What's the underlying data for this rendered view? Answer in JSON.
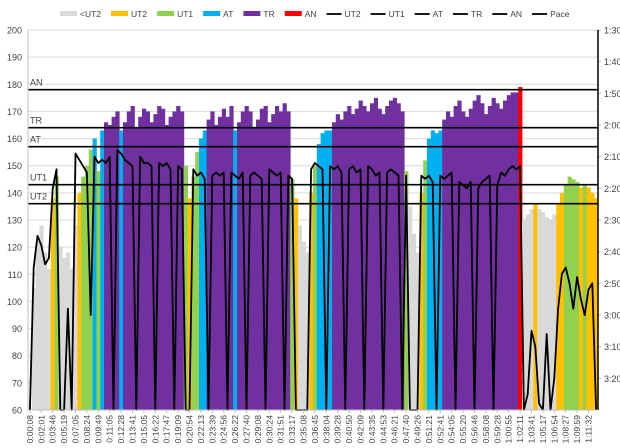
{
  "chart_data": {
    "type": "area",
    "title": "",
    "legend_position": "top",
    "legend": [
      {
        "label": "<UT2",
        "kind": "swatch",
        "color": "#d9d9d9"
      },
      {
        "label": "UT2",
        "kind": "swatch",
        "color": "#ffc000"
      },
      {
        "label": "UT1",
        "kind": "swatch",
        "color": "#92d050"
      },
      {
        "label": "AT",
        "kind": "swatch",
        "color": "#00b0f0"
      },
      {
        "label": "TR",
        "kind": "swatch",
        "color": "#7030a0"
      },
      {
        "label": "AN",
        "kind": "swatch",
        "color": "#ff0000"
      },
      {
        "label": "UT2",
        "kind": "line",
        "color": "#000000"
      },
      {
        "label": "UT1",
        "kind": "line",
        "color": "#000000"
      },
      {
        "label": "AT",
        "kind": "line",
        "color": "#000000"
      },
      {
        "label": "TR",
        "kind": "line",
        "color": "#000000"
      },
      {
        "label": "AN",
        "kind": "line",
        "color": "#000000"
      },
      {
        "label": "Pace",
        "kind": "line",
        "color": "#000000"
      }
    ],
    "y_left": {
      "min": 60,
      "max": 200,
      "step": 10,
      "grid": true
    },
    "y_right": {
      "reversed": true,
      "ticks": [
        "1:30",
        "1:40",
        "1:50",
        "2:00",
        "2:10",
        "2:20",
        "2:30",
        "2:40",
        "2:50",
        "3:00",
        "3:10",
        "3:20"
      ],
      "min": "1:30",
      "max": "3:30"
    },
    "x_tick_labels": [
      "0:00:08",
      "0:02:01",
      "0:03:46",
      "0:05:19",
      "0:07:05",
      "0:08:24",
      "0:09:49",
      "0:11:05",
      "0:12:28",
      "0:13:41",
      "0:15:05",
      "0:16:22",
      "0:17:47",
      "0:19:09",
      "0:20:54",
      "0:22:13",
      "0:23:39",
      "0:24:56",
      "0:26:22",
      "0:27:40",
      "0:29:08",
      "0:30:24",
      "0:31:51",
      "0:33:17",
      "0:35:08",
      "0:36:45",
      "0:38:04",
      "0:39:28",
      "0:40:50",
      "0:42:09",
      "0:43:35",
      "0:44:53",
      "0:46:21",
      "0:47:40",
      "0:49:26",
      "0:51:21",
      "0:52:41",
      "0:54:05",
      "0:55:20",
      "0:56:46",
      "0:58:08",
      "0:59:28",
      "1:00:55",
      "1:02:11",
      "1:03:41",
      "1:05:17",
      "1:06:54",
      "1:08:27",
      "1:09:59",
      "1:11:32"
    ],
    "thresholds": [
      {
        "label": "AN",
        "value": 178
      },
      {
        "label": "TR",
        "value": 164
      },
      {
        "label": "AT",
        "value": 157
      },
      {
        "label": "UT1",
        "value": 143
      },
      {
        "label": "UT2",
        "value": 136
      }
    ],
    "zone_colors": {
      "below_UT2": "#d9d9d9",
      "UT2": "#ffc000",
      "UT1": "#92d050",
      "AT": "#00b0f0",
      "TR": "#7030a0",
      "AN": "#ff0000"
    },
    "heart_rate": [
      60,
      105,
      122,
      128,
      118,
      112,
      138,
      146,
      120,
      116,
      118,
      112,
      128,
      140,
      146,
      150,
      156,
      160,
      148,
      163,
      166,
      165,
      168,
      170,
      163,
      166,
      170,
      172,
      164,
      168,
      171,
      170,
      166,
      169,
      172,
      171,
      165,
      168,
      170,
      172,
      170,
      150,
      138,
      146,
      155,
      160,
      163,
      167,
      170,
      165,
      168,
      171,
      168,
      172,
      163,
      166,
      170,
      172,
      170,
      164,
      167,
      171,
      172,
      166,
      169,
      172,
      170,
      173,
      170,
      145,
      138,
      128,
      122,
      118,
      140,
      150,
      158,
      162,
      163,
      163,
      166,
      169,
      167,
      170,
      172,
      169,
      171,
      174,
      172,
      170,
      173,
      175,
      171,
      169,
      172,
      174,
      175,
      173,
      170,
      148,
      135,
      125,
      118,
      140,
      152,
      160,
      163,
      162,
      163,
      167,
      170,
      168,
      172,
      174,
      170,
      168,
      171,
      174,
      176,
      173,
      169,
      172,
      175,
      173,
      171,
      174,
      176,
      177,
      177,
      179,
      130,
      132,
      134,
      136,
      134,
      133,
      131,
      130,
      132,
      136,
      140,
      143,
      146,
      145,
      144,
      142,
      143,
      142,
      140,
      138
    ],
    "pace": [
      "3:30",
      "2:45",
      "2:35",
      "2:38",
      "2:44",
      "2:42",
      "2:20",
      "2:14",
      "3:30",
      "3:30",
      "2:58",
      "3:30",
      "2:09",
      "2:11",
      "2:13",
      "2:15",
      "3:00",
      "2:10",
      "2:12",
      "2:11",
      "2:12",
      "2:10",
      "3:30",
      "2:08",
      "2:09",
      "2:11",
      "2:12",
      "2:13",
      "3:30",
      "2:10",
      "2:12",
      "2:12",
      "2:13",
      "3:30",
      "2:12",
      "2:13",
      "2:12",
      "2:14",
      "3:30",
      "2:13",
      "2:14",
      "3:30",
      "3:30",
      "2:14",
      "2:16",
      "2:15",
      "2:17",
      "3:30",
      "2:16",
      "2:15",
      "2:16",
      "2:15",
      "3:30",
      "2:15",
      "2:16",
      "2:17",
      "2:15",
      "3:30",
      "2:16",
      "2:15",
      "2:16",
      "2:17",
      "3:30",
      "2:14",
      "2:15",
      "2:16",
      "2:15",
      "3:30",
      "2:16",
      "2:17",
      "3:30",
      "3:30",
      "3:30",
      "3:30",
      "2:14",
      "2:12",
      "2:13",
      "2:14",
      "3:30",
      "2:13",
      "2:14",
      "2:13",
      "2:15",
      "3:30",
      "2:14",
      "2:13",
      "2:15",
      "2:14",
      "3:30",
      "2:13",
      "2:14",
      "2:16",
      "2:15",
      "3:30",
      "2:15",
      "2:14",
      "2:15",
      "2:16",
      "3:30",
      "2:16",
      "3:30",
      "3:30",
      "3:30",
      "2:16",
      "2:17",
      "2:16",
      "2:18",
      "3:30",
      "2:16",
      "2:17",
      "2:16",
      "2:15",
      "3:30",
      "2:18",
      "2:19",
      "2:20",
      "2:18",
      "3:30",
      "2:20",
      "2:18",
      "2:17",
      "2:16",
      "3:30",
      "2:19",
      "2:15",
      "2:16",
      "2:14",
      "2:13",
      "2:14",
      "2:13",
      "3:30",
      "3:25",
      "3:05",
      "3:10",
      "3:28",
      "3:30",
      "3:06",
      "3:30",
      "3:20",
      "2:58",
      "2:47",
      "2:45",
      "2:50",
      "2:58",
      "2:48",
      "2:55",
      "3:00",
      "2:52",
      "2:50",
      "3:30"
    ]
  }
}
